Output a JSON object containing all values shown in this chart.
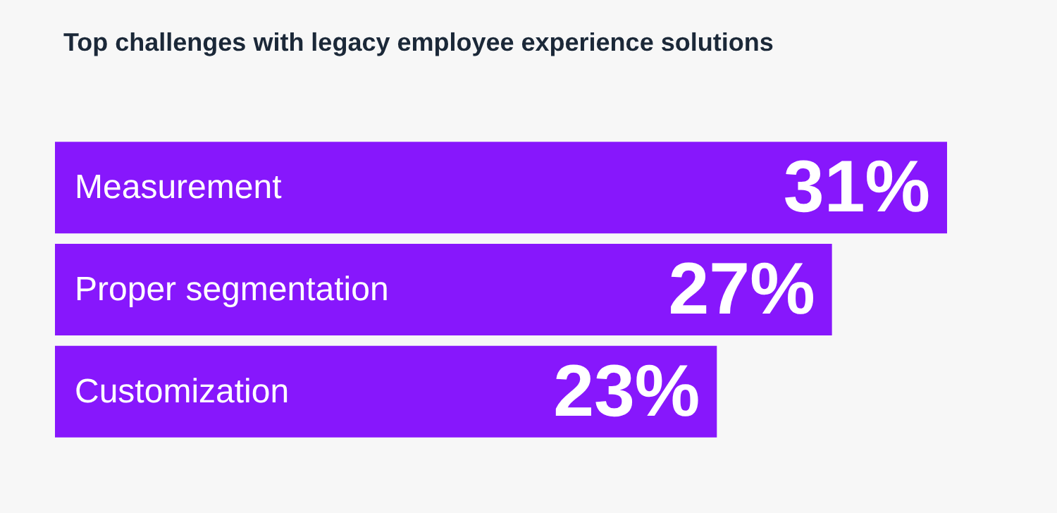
{
  "chart_data": {
    "type": "bar",
    "title": "Top challenges with legacy employee experience solutions",
    "orientation": "horizontal",
    "categories": [
      "Measurement",
      "Proper segmentation",
      "Customization"
    ],
    "values": [
      31,
      27,
      23
    ],
    "value_labels": [
      "31%",
      "27%",
      "23%"
    ],
    "color": "#8717fc"
  }
}
